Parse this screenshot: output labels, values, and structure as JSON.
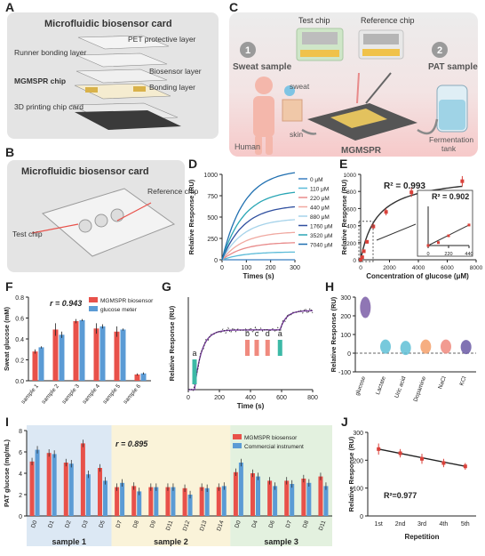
{
  "panels": {
    "A": {
      "label": "A",
      "title": "Microfluidic biosensor card",
      "layers": [
        "PET protective layer",
        "Runner bonding layer",
        "Biosensor layer",
        "MGMSPR chip",
        "Bonding layer",
        "3D printing chip card"
      ]
    },
    "B": {
      "label": "B",
      "title": "Microfluidic biosensor card",
      "test_chip": "Test chip",
      "reference_chip": "Reference chip"
    },
    "C": {
      "label": "C",
      "test_chip": "Test chip",
      "reference_chip": "Reference chip",
      "step1_num": "1",
      "step1_label": "Sweat sample",
      "step2_num": "2",
      "step2_label": "PAT sample",
      "sweat": "sweat",
      "skin": "skin",
      "human": "Human",
      "device": "MGMSPR",
      "tank": "Fermentation tank"
    },
    "D": {
      "label": "D"
    },
    "E": {
      "label": "E",
      "inset_r2": "R² = 0.902"
    },
    "F": {
      "label": "F"
    },
    "G": {
      "label": "G"
    },
    "H": {
      "label": "H"
    },
    "I": {
      "label": "I"
    },
    "J": {
      "label": "J"
    }
  },
  "colors": {
    "red": "#e8514a",
    "blue": "#5b9bd5",
    "panel_bg": "#e6e6e6",
    "c_bg": "#f7d9d9"
  },
  "chart_data": [
    {
      "id": "D",
      "type": "line",
      "xlabel": "Times (s)",
      "ylabel": "Relative Response (RU)",
      "xlim": [
        0,
        300
      ],
      "ylim": [
        0,
        1000
      ],
      "xticks": [
        0,
        100,
        200,
        300
      ],
      "yticks": [
        0,
        250,
        500,
        750,
        1000
      ],
      "series": [
        {
          "name": "0 μM",
          "plateau": 0,
          "color": "#3a7fc0"
        },
        {
          "name": "110 μM",
          "plateau": 90,
          "color": "#5bbbd8"
        },
        {
          "name": "220 μM",
          "plateau": 200,
          "color": "#e88a8a"
        },
        {
          "name": "440 μM",
          "plateau": 320,
          "color": "#f0a8a0"
        },
        {
          "name": "880 μM",
          "plateau": 470,
          "color": "#a6d3ea"
        },
        {
          "name": "1760 μM",
          "plateau": 620,
          "color": "#2f4f9f"
        },
        {
          "name": "3520 μM",
          "plateau": 790,
          "color": "#2aa6b5"
        },
        {
          "name": "7040 μM",
          "plateau": 1020,
          "color": "#1f6fb0"
        }
      ]
    },
    {
      "id": "E",
      "type": "scatter",
      "xlabel": "Concentration of glucose (μM)",
      "ylabel": "Relative Response (RU)",
      "r2": "R² = 0.993",
      "xlim": [
        0,
        8000
      ],
      "ylim": [
        0,
        1000
      ],
      "xticks": [
        0,
        2000,
        4000,
        6000,
        8000
      ],
      "yticks": [
        0,
        200,
        400,
        600,
        800,
        1000
      ],
      "x": [
        0,
        110,
        220,
        440,
        880,
        1760,
        3520,
        7040
      ],
      "y": [
        0,
        30,
        100,
        210,
        390,
        560,
        790,
        920
      ],
      "err": [
        0,
        10,
        15,
        20,
        30,
        40,
        55,
        60
      ],
      "inset": {
        "xlim": [
          0,
          440
        ],
        "ylim": [
          0,
          400
        ],
        "xticks": [
          0,
          220,
          440
        ],
        "yticks": [
          0,
          100,
          200,
          300,
          400
        ]
      }
    },
    {
      "id": "F",
      "type": "bar",
      "r": "r = 0.943",
      "ylabel": "Sweat glucose (mM)",
      "ylim": [
        0,
        0.8
      ],
      "yticks": [
        0.0,
        0.2,
        0.4,
        0.6,
        0.8
      ],
      "categories": [
        "sample 1",
        "sample 2",
        "sample 3",
        "sample 4",
        "sample 5",
        "sample 6"
      ],
      "series": [
        {
          "name": "MGMSPR biosensor",
          "values": [
            0.28,
            0.49,
            0.57,
            0.5,
            0.47,
            0.06
          ],
          "err": [
            0.02,
            0.06,
            0.02,
            0.05,
            0.05,
            0.01
          ]
        },
        {
          "name": "glucose meter",
          "values": [
            0.32,
            0.44,
            0.58,
            0.52,
            0.49,
            0.07
          ],
          "err": [
            0.01,
            0.03,
            0.01,
            0.02,
            0.01,
            0.01
          ]
        }
      ]
    },
    {
      "id": "G",
      "type": "line",
      "xlabel": "Time (s)",
      "ylabel": "Relative Response (RU)",
      "xlim": [
        0,
        800
      ],
      "xticks": [
        0,
        200,
        400,
        600,
        800
      ],
      "markers": [
        "a",
        "b",
        "c",
        "d",
        "a"
      ],
      "marker_x": [
        40,
        380,
        440,
        510,
        590
      ]
    },
    {
      "id": "H",
      "type": "violin",
      "ylabel": "Relative Response (RU)",
      "ylim": [
        -100,
        300
      ],
      "yticks": [
        -100,
        0,
        100,
        200,
        300
      ],
      "categories": [
        "glucose",
        "Lactate",
        "Uric acid",
        "Dopamine",
        "NaCl",
        "KCl"
      ],
      "values": [
        245,
        35,
        28,
        35,
        35,
        33
      ],
      "colors": [
        "#7b5ea7",
        "#5fbfd6",
        "#5fbfd6",
        "#f4a06b",
        "#f08a7e",
        "#6b5aa6"
      ]
    },
    {
      "id": "I",
      "type": "bar",
      "r": "r = 0.895",
      "ylabel": "PAT glucose (mg/mL)",
      "ylim": [
        0,
        8
      ],
      "yticks": [
        0,
        2,
        4,
        6,
        8
      ],
      "categories": [
        "D0",
        "D1",
        "D2",
        "D3",
        "D5",
        "D7",
        "D8",
        "D9",
        "D11",
        "D12",
        "D13",
        "D14",
        "D0",
        "D4",
        "D6",
        "D7",
        "D8",
        "D11"
      ],
      "groups": [
        {
          "name": "sample 1",
          "count": 5,
          "color": "#dce8f4"
        },
        {
          "name": "sample 2",
          "count": 7,
          "color": "#faf3d9"
        },
        {
          "name": "sample 3",
          "count": 6,
          "color": "#e3f1df"
        }
      ],
      "series": [
        {
          "name": "MGMSPR biosensor",
          "values": [
            5.1,
            5.9,
            5.0,
            6.8,
            4.5,
            2.7,
            2.8,
            2.7,
            2.7,
            2.6,
            2.7,
            2.7,
            4.1,
            4.0,
            3.3,
            3.3,
            3.5,
            3.7
          ]
        },
        {
          "name": "Commercial instrument",
          "values": [
            6.2,
            5.8,
            4.9,
            3.9,
            3.3,
            3.1,
            2.3,
            2.7,
            2.7,
            2.0,
            2.6,
            2.8,
            5.0,
            3.7,
            2.8,
            3.0,
            3.1,
            2.8
          ]
        }
      ]
    },
    {
      "id": "J",
      "type": "line",
      "xlabel": "Repetition",
      "ylabel": "Relative Response (RU)",
      "r2": "R²=0.977",
      "ylim": [
        0,
        300
      ],
      "yticks": [
        0,
        100,
        200,
        300
      ],
      "categories": [
        "1st",
        "2nd",
        "3rd",
        "4th",
        "5th"
      ],
      "values": [
        240,
        225,
        205,
        190,
        178
      ],
      "err": [
        20,
        15,
        18,
        15,
        12
      ]
    }
  ]
}
